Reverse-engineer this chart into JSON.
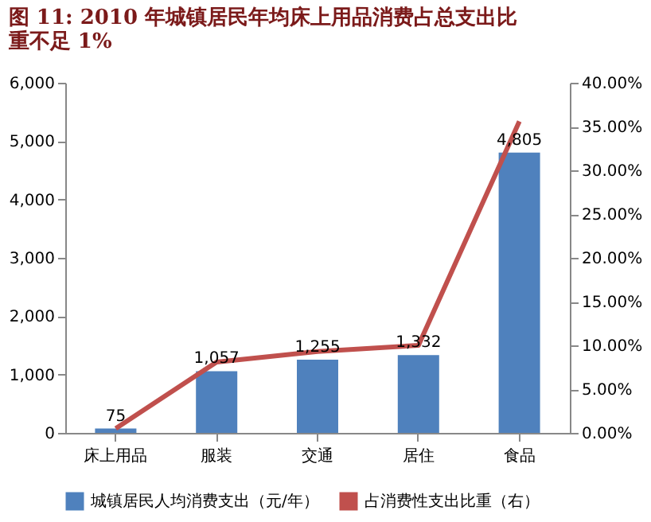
{
  "chart_data": {
    "type": "bar",
    "title": [
      "图 11: 2010 年城镇居民年均床上用品消费占总支出比",
      "重不足 1%"
    ],
    "categories": [
      "床上用品",
      "服装",
      "交通",
      "居住",
      "食品"
    ],
    "series": [
      {
        "name": "城镇居民人均消费支出（元/年）",
        "color": "#4f81bd",
        "values": [
          75,
          1057,
          1255,
          1332,
          4805
        ],
        "value_labels": [
          "75",
          "1,057",
          "1,255",
          "1,332",
          "4,805"
        ]
      },
      {
        "name": "占消费性支出比重（右）",
        "type": "line",
        "axis": "y2",
        "color": "#c0504d",
        "values": [
          0.5,
          8.1,
          9.3,
          10.0,
          35.6
        ]
      }
    ],
    "ylim": [
      0,
      6000
    ],
    "yticks": [
      {
        "value": 0,
        "label": "0"
      },
      {
        "value": 1000,
        "label": "1,000"
      },
      {
        "value": 2000,
        "label": "2,000"
      },
      {
        "value": 3000,
        "label": "3,000"
      },
      {
        "value": 4000,
        "label": "4,000"
      },
      {
        "value": 5000,
        "label": "5,000"
      },
      {
        "value": 6000,
        "label": "6,000"
      }
    ],
    "y2lim": [
      0,
      40
    ],
    "y2ticks": [
      {
        "value": 0,
        "label": "0.00%"
      },
      {
        "value": 5,
        "label": "5.00%"
      },
      {
        "value": 10,
        "label": "10.00%"
      },
      {
        "value": 15,
        "label": "15.00%"
      },
      {
        "value": 20,
        "label": "20.00%"
      },
      {
        "value": 25,
        "label": "25.00%"
      },
      {
        "value": 30,
        "label": "30.00%"
      },
      {
        "value": 35,
        "label": "35.00%"
      },
      {
        "value": 40,
        "label": "40.00%"
      }
    ],
    "grid": false,
    "legend": "bottom",
    "marker": "none",
    "line_style": "solid"
  }
}
